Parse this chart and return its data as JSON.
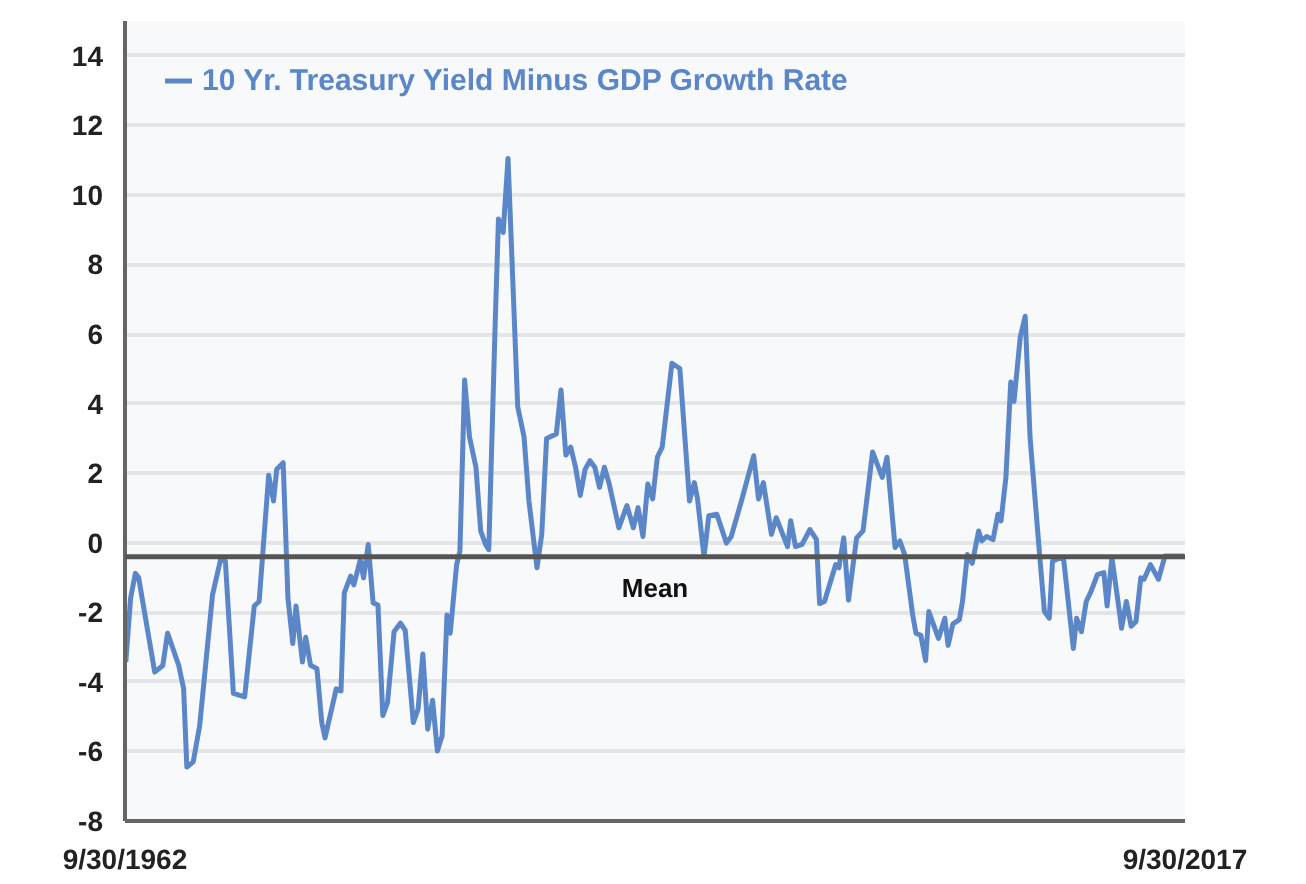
{
  "chart_data": {
    "type": "line",
    "x": [
      "1962-10",
      "1963-01",
      "1963-04",
      "1963-06",
      "1964-04",
      "1964-09",
      "1964-12",
      "1965-07",
      "1965-10",
      "1965-12",
      "1966-04",
      "1966-08",
      "1967-04",
      "1967-09",
      "1967-12",
      "1968-05",
      "1968-12",
      "1969-06",
      "1969-09",
      "1970-03",
      "1970-06",
      "1970-08",
      "1970-12",
      "1971-03",
      "1971-06",
      "1971-08",
      "1971-12",
      "1972-02",
      "1972-05",
      "1972-09",
      "1972-12",
      "1973-02",
      "1973-09",
      "1973-12",
      "1974-02",
      "1974-06",
      "1974-08",
      "1974-12",
      "1975-02",
      "1975-05",
      "1975-08",
      "1975-11",
      "1976-02",
      "1976-05",
      "1976-09",
      "1977-01",
      "1977-04",
      "1977-09",
      "1977-12",
      "1978-03",
      "1978-06",
      "1978-09",
      "1978-12",
      "1979-03",
      "1979-06",
      "1979-08",
      "1979-12",
      "1980-02",
      "1980-05",
      "1980-08",
      "1980-12",
      "1981-03",
      "1981-06",
      "1981-08",
      "1981-12",
      "1982-02",
      "1982-05",
      "1982-08",
      "1983-02",
      "1983-06",
      "1983-09",
      "1984-02",
      "1984-05",
      "1984-08",
      "1985-02",
      "1985-05",
      "1985-08",
      "1985-11",
      "1986-02",
      "1986-05",
      "1986-08",
      "1986-11",
      "1987-02",
      "1987-05",
      "1987-08",
      "1987-11",
      "1988-05",
      "1988-10",
      "1989-02",
      "1989-05",
      "1989-08",
      "1989-11",
      "1990-02",
      "1990-05",
      "1990-08",
      "1991-02",
      "1991-07",
      "1992-01",
      "1992-04",
      "1992-06",
      "1992-10",
      "1993-01",
      "1993-06",
      "1993-12",
      "1994-03",
      "1994-09",
      "1995-05",
      "1995-08",
      "1995-11",
      "1996-04",
      "1996-07",
      "1997-02",
      "1997-04",
      "1997-07",
      "1997-11",
      "1998-04",
      "1998-08",
      "1998-10",
      "1999-01",
      "1999-08",
      "1999-10",
      "2000-01",
      "2000-04",
      "2000-09",
      "2001-01",
      "2001-07",
      "2002-01",
      "2002-04",
      "2002-09",
      "2002-12",
      "2003-03",
      "2003-08",
      "2003-10",
      "2004-01",
      "2004-04",
      "2004-06",
      "2004-12",
      "2005-04",
      "2005-06",
      "2005-09",
      "2006-01",
      "2006-03",
      "2006-06",
      "2006-09",
      "2007-01",
      "2007-03",
      "2007-06",
      "2007-10",
      "2008-01",
      "2008-03",
      "2008-06",
      "2008-09",
      "2008-11",
      "2009-03",
      "2009-06",
      "2009-09",
      "2010-03",
      "2010-06",
      "2010-09",
      "2010-11",
      "2011-04",
      "2011-06",
      "2011-12",
      "2012-02",
      "2012-05",
      "2012-08",
      "2012-11",
      "2013-03",
      "2013-07",
      "2013-09",
      "2013-12",
      "2014-05",
      "2014-06",
      "2014-09",
      "2014-12",
      "2015-03",
      "2015-06",
      "2015-08",
      "2015-12",
      "2016-05",
      "2016-09",
      "2017-09"
    ],
    "series": [
      {
        "name": "10 Yr. Treasury Yield Minus GDP Growth Rate",
        "color": "#5b86c8",
        "values": [
          -3.43,
          -1.58,
          -0.88,
          -1.0,
          -3.72,
          -3.53,
          -2.6,
          -3.53,
          -4.2,
          -6.45,
          -6.3,
          -5.26,
          -1.5,
          -0.49,
          -0.53,
          -4.33,
          -4.43,
          -1.82,
          -1.69,
          1.94,
          1.2,
          2.11,
          2.3,
          -1.59,
          -2.9,
          -1.82,
          -3.43,
          -2.72,
          -3.52,
          -3.62,
          -5.17,
          -5.61,
          -4.2,
          -4.26,
          -1.44,
          -0.96,
          -1.21,
          -0.49,
          -1.01,
          -0.05,
          -1.73,
          -1.79,
          -4.97,
          -4.59,
          -2.56,
          -2.31,
          -2.52,
          -5.17,
          -4.78,
          -3.2,
          -5.36,
          -4.53,
          -5.99,
          -5.55,
          -2.08,
          -2.6,
          -0.63,
          -0.24,
          4.68,
          3.04,
          2.17,
          0.34,
          -0.05,
          -0.2,
          6.32,
          9.31,
          8.92,
          11.05,
          3.91,
          3.04,
          1.2,
          -0.72,
          0.24,
          3.0,
          3.13,
          4.39,
          2.52,
          2.75,
          2.17,
          1.36,
          2.11,
          2.36,
          2.17,
          1.59,
          2.17,
          1.69,
          0.43,
          1.07,
          0.43,
          1.01,
          0.18,
          1.69,
          1.26,
          2.46,
          2.75,
          5.16,
          5.01,
          1.2,
          1.73,
          1.26,
          -0.4,
          0.78,
          0.82,
          -0.01,
          0.18,
          1.15,
          2.5,
          1.26,
          1.73,
          0.24,
          0.72,
          -0.11,
          0.63,
          -0.11,
          -0.05,
          0.38,
          0.1,
          -1.75,
          -1.69,
          -0.63,
          -0.72,
          0.14,
          -1.65,
          0.14,
          0.34,
          2.61,
          1.88,
          2.46,
          -0.14,
          0.05,
          -0.34,
          -2.08,
          -2.6,
          -2.66,
          -3.39,
          -1.98,
          -2.75,
          -2.17,
          -2.95,
          -2.33,
          -2.21,
          -1.69,
          -0.34,
          -0.59,
          0.34,
          0.05,
          0.18,
          0.09,
          0.82,
          0.63,
          1.88,
          4.62,
          4.06,
          5.93,
          6.51,
          3.04,
          -0.34,
          -1.98,
          -2.17,
          -0.53,
          -0.43,
          -0.49,
          -3.04,
          -2.17,
          -2.56,
          -1.69,
          -1.4,
          -0.92,
          -0.86,
          -1.82,
          -0.43,
          -2.08,
          -2.46,
          -1.69,
          -2.4,
          -2.27,
          -1.01,
          -1.05,
          -0.63,
          -1.05,
          -0.38,
          -0.38
        ]
      }
    ],
    "xlim": [
      "1962-09-30",
      "2017-09-30"
    ],
    "xticks": [
      {
        "value": "1962-09-30",
        "label": "9/30/1962"
      },
      {
        "value": "2017-09-30",
        "label": "9/30/2017"
      }
    ],
    "ylim": [
      -8,
      15
    ],
    "yticks": [
      -8,
      -6,
      -4,
      -2,
      0,
      2,
      4,
      6,
      8,
      10,
      12,
      14
    ],
    "ref_lines": [
      {
        "axis": "y",
        "value": -0.4,
        "label": "Mean",
        "color": "#555555"
      }
    ],
    "grid": "y",
    "legend": "top left",
    "line_style": "solid"
  }
}
